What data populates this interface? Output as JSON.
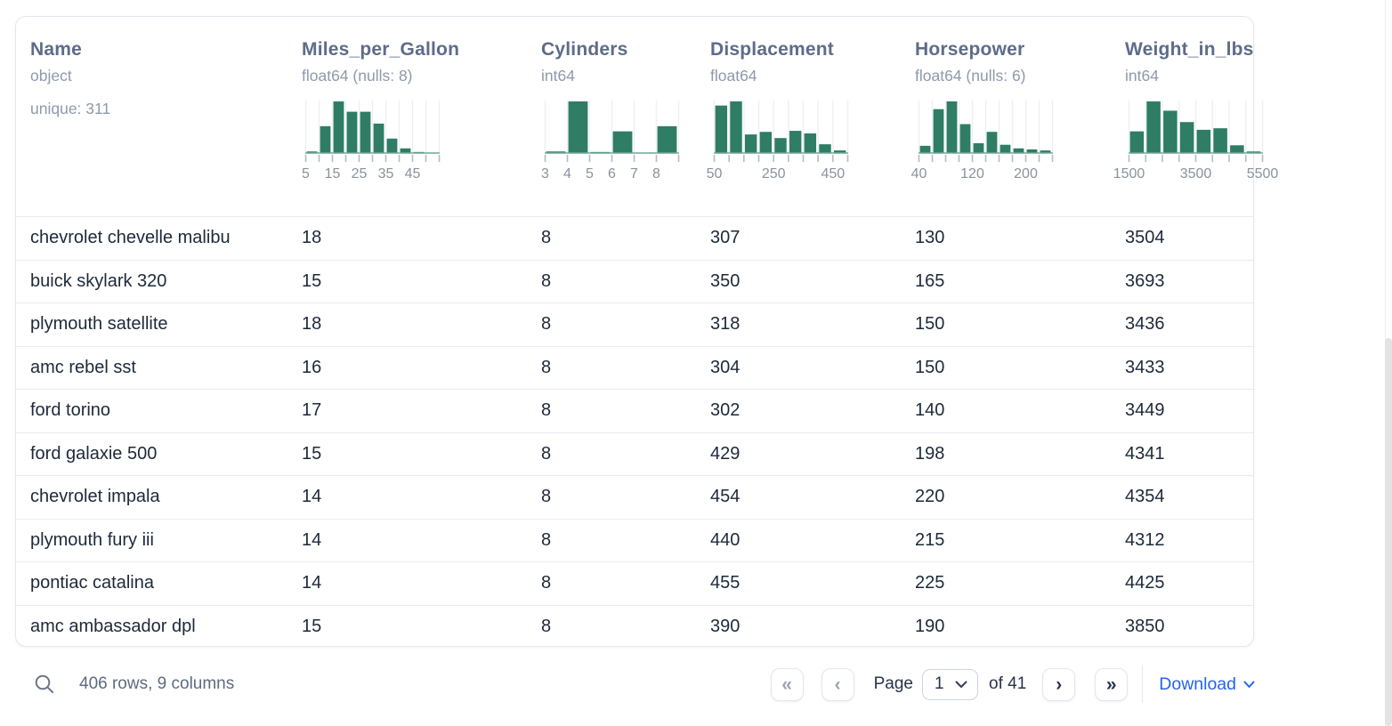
{
  "table": {
    "columns": [
      {
        "name": "Name",
        "type": "object",
        "extra": "unique: 311",
        "hist": null
      },
      {
        "name": "Miles_per_Gallon",
        "type": "float64 (nulls: 8)",
        "extra": "",
        "hist": 0
      },
      {
        "name": "Cylinders",
        "type": "int64",
        "extra": "",
        "hist": 1
      },
      {
        "name": "Displacement",
        "type": "float64",
        "extra": "",
        "hist": 2
      },
      {
        "name": "Horsepower",
        "type": "float64 (nulls: 6)",
        "extra": "",
        "hist": 3
      },
      {
        "name": "Weight_in_lbs",
        "type": "int64",
        "extra": "",
        "hist": 4
      }
    ],
    "rows": [
      [
        "chevrolet chevelle malibu",
        "18",
        "8",
        "307",
        "130",
        "3504"
      ],
      [
        "buick skylark 320",
        "15",
        "8",
        "350",
        "165",
        "3693"
      ],
      [
        "plymouth satellite",
        "18",
        "8",
        "318",
        "150",
        "3436"
      ],
      [
        "amc rebel sst",
        "16",
        "8",
        "304",
        "150",
        "3433"
      ],
      [
        "ford torino",
        "17",
        "8",
        "302",
        "140",
        "3449"
      ],
      [
        "ford galaxie 500",
        "15",
        "8",
        "429",
        "198",
        "4341"
      ],
      [
        "chevrolet impala",
        "14",
        "8",
        "454",
        "220",
        "4354"
      ],
      [
        "plymouth fury iii",
        "14",
        "8",
        "440",
        "215",
        "4312"
      ],
      [
        "pontiac catalina",
        "14",
        "8",
        "455",
        "225",
        "4425"
      ],
      [
        "amc ambassador dpl",
        "15",
        "8",
        "390",
        "190",
        "3850"
      ]
    ]
  },
  "chart_data": [
    {
      "type": "bar",
      "title": "Miles_per_Gallon",
      "unit": "relative_height_pct",
      "values": [
        3,
        52,
        100,
        80,
        80,
        57,
        28,
        9,
        2,
        0
      ],
      "x_ticks": [
        "5",
        "",
        "15",
        "",
        "25",
        "",
        "35",
        "",
        "45",
        "",
        ""
      ]
    },
    {
      "type": "bar",
      "title": "Cylinders",
      "unit": "relative_height_pct",
      "values": [
        3,
        100,
        2,
        42,
        0,
        52
      ],
      "x_ticks": [
        "3",
        "4",
        "5",
        "6",
        "7",
        "8",
        ""
      ]
    },
    {
      "type": "bar",
      "title": "Displacement",
      "unit": "relative_height_pct",
      "values": [
        92,
        100,
        36,
        41,
        29,
        43,
        38,
        17,
        5
      ],
      "x_ticks": [
        "50",
        "",
        "",
        "",
        "250",
        "",
        "",
        "",
        "450",
        ""
      ]
    },
    {
      "type": "bar",
      "title": "Horsepower",
      "unit": "relative_height_pct",
      "values": [
        14,
        85,
        100,
        56,
        19,
        41,
        16,
        9,
        7,
        5
      ],
      "x_ticks": [
        "40",
        "",
        "",
        "",
        "120",
        "",
        "",
        "",
        "200",
        "",
        ""
      ]
    },
    {
      "type": "bar",
      "title": "Weight_in_lbs",
      "unit": "relative_height_pct",
      "values": [
        42,
        100,
        82,
        60,
        45,
        48,
        15,
        3
      ],
      "x_ticks": [
        "1500",
        "",
        "",
        "",
        "3500",
        "",
        "",
        "",
        "5500"
      ]
    }
  ],
  "footer": {
    "summary": "406 rows, 9 columns",
    "pagination": {
      "first_label": "«",
      "prev_label": "‹",
      "page_label": "Page",
      "page_value": "1",
      "of_label": "of 41",
      "next_label": "›",
      "last_label": "»"
    },
    "download_label": "Download"
  },
  "colors": {
    "bar_green": "#2e7d64",
    "baseline_teal": "#6fa893",
    "accent_blue": "#2563eb",
    "header_slate": "#5d6c88",
    "row_navy": "#1d2939"
  }
}
